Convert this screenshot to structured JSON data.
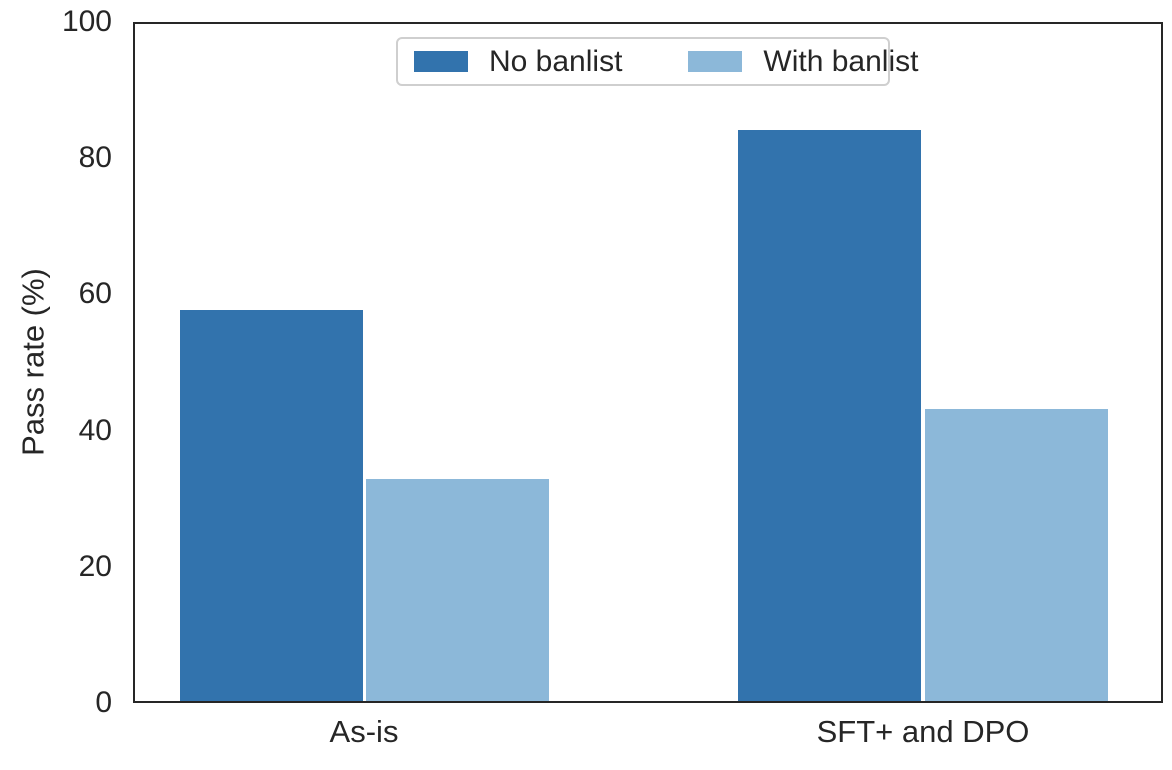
{
  "chart_data": {
    "type": "bar",
    "title": "",
    "categories": [
      "As-is",
      "SFT+ and DPO"
    ],
    "series": [
      {
        "name": "No banlist",
        "color": "#3273ad",
        "values": [
          57.7,
          84.4
        ]
      },
      {
        "name": "With banlist",
        "color": "#8cb8d9",
        "values": [
          32.8,
          43.2
        ]
      }
    ],
    "xlabel": "",
    "ylabel": "Pass rate (%)",
    "ylim": [
      0,
      100
    ],
    "yticks": [
      0,
      20,
      40,
      60,
      80,
      100
    ],
    "grid": false,
    "legend_position": "upper center",
    "colors": {
      "spine": "#262626",
      "text": "#262626",
      "legend_border": "#cfcfcf",
      "background": "#ffffff"
    }
  }
}
